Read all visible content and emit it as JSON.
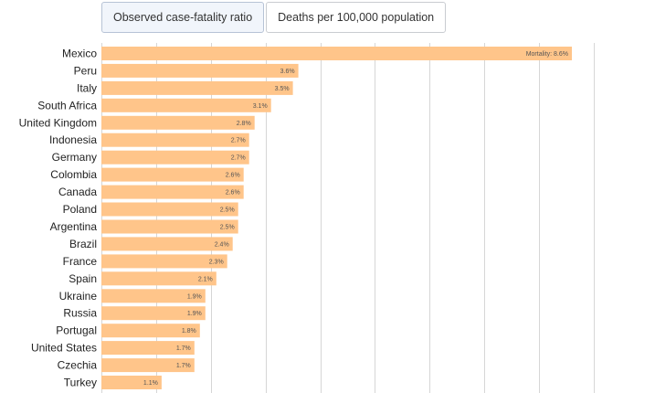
{
  "tabs": [
    {
      "label": "Observed case-fatality ratio",
      "active": true
    },
    {
      "label": "Deaths per 100,000 population",
      "active": false
    }
  ],
  "colors": {
    "bar": "#ffc58a",
    "grid": "#d6d6d6"
  },
  "chart_data": {
    "type": "bar",
    "orientation": "horizontal",
    "categories": [
      "Mexico",
      "Peru",
      "Italy",
      "South Africa",
      "United Kingdom",
      "Indonesia",
      "Germany",
      "Colombia",
      "Canada",
      "Poland",
      "Argentina",
      "Brazil",
      "France",
      "Spain",
      "Ukraine",
      "Russia",
      "Portugal",
      "United States",
      "Czechia",
      "Turkey"
    ],
    "values": [
      8.6,
      3.6,
      3.5,
      3.1,
      2.8,
      2.7,
      2.7,
      2.6,
      2.6,
      2.5,
      2.5,
      2.4,
      2.3,
      2.1,
      1.9,
      1.9,
      1.8,
      1.7,
      1.7,
      1.1
    ],
    "value_labels": [
      "Mortality: 8.6%",
      "3.6%",
      "3.5%",
      "3.1%",
      "2.8%",
      "2.7%",
      "2.7%",
      "2.6%",
      "2.6%",
      "2.5%",
      "2.5%",
      "2.4%",
      "2.3%",
      "2.1%",
      "1.9%",
      "1.9%",
      "1.8%",
      "1.7%",
      "1.7%",
      "1.1%"
    ],
    "xlim": [
      0,
      9
    ],
    "grid": true
  }
}
